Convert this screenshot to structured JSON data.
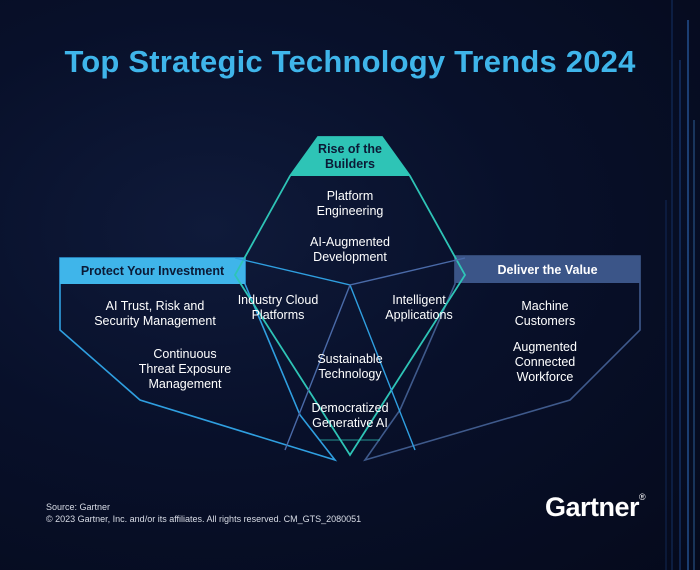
{
  "title": "Top Strategic Technology Trends 2024",
  "themes": {
    "left": {
      "header": "Protect Your Investment",
      "color": "#3fb5ea"
    },
    "top": {
      "header": "Rise of the\nBuilders",
      "color": "#2ec4b6"
    },
    "right": {
      "header": "Deliver the Value",
      "color": "#3f5a8c"
    }
  },
  "trends": {
    "ai_trust": "AI Trust, Risk and\nSecurity Management",
    "ctem": "Continuous\nThreat Exposure\nManagement",
    "platform_engineering": "Platform\nEngineering",
    "ai_augmented_development": "AI-Augmented\nDevelopment",
    "industry_cloud": "Industry Cloud\nPlatforms",
    "intelligent_applications": "Intelligent\nApplications",
    "sustainable_technology": "Sustainable\nTechnology",
    "democratized_ai": "Democratized\nGenerative AI",
    "machine_customers": "Machine\nCustomers",
    "augmented_workforce": "Augmented\nConnected\nWorkforce"
  },
  "footer": {
    "source": "Source: Gartner",
    "copyright": "© 2023 Gartner, Inc. and/or its affiliates. All rights reserved. CM_GTS_2080051"
  },
  "logo": {
    "text": "Gartner"
  }
}
